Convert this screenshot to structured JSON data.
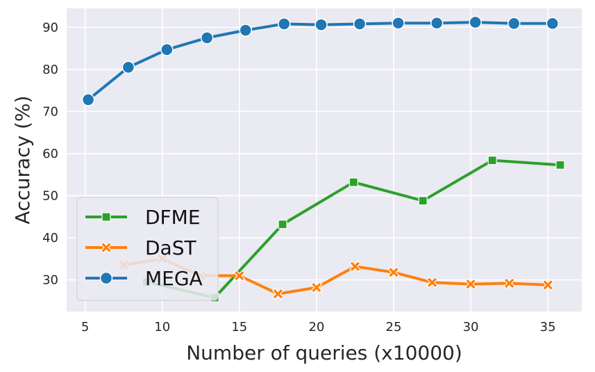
{
  "chart_data": {
    "type": "line",
    "title": "",
    "xlabel": "Number of queries (x10000)",
    "ylabel": "Accuracy (%)",
    "xlim": [
      3.8,
      37.2
    ],
    "ylim": [
      22.5,
      94.5
    ],
    "xticks": [
      5,
      10,
      15,
      20,
      25,
      30,
      35
    ],
    "yticks": [
      30,
      40,
      50,
      60,
      70,
      80,
      90
    ],
    "grid": true,
    "legend_position": "lower-left",
    "series": [
      {
        "name": "DFME",
        "color": "#2ca02c",
        "marker": "square",
        "x": [
          9,
          13.4,
          17.8,
          22.4,
          26.9,
          31.4,
          35.8
        ],
        "y": [
          29.5,
          25.8,
          43.2,
          53.2,
          48.8,
          58.4,
          57.3
        ]
      },
      {
        "name": "DaST",
        "color": "#ff7f0e",
        "marker": "x",
        "x": [
          7.5,
          10,
          12.5,
          15,
          17.5,
          20,
          22.5,
          25,
          27.5,
          30,
          32.5,
          35
        ],
        "y": [
          33.5,
          35.0,
          31.0,
          31.0,
          26.7,
          28.2,
          33.2,
          31.8,
          29.4,
          29.0,
          29.2,
          28.8
        ]
      },
      {
        "name": "MEGA",
        "color": "#1f77b4",
        "marker": "circle",
        "x": [
          5.2,
          7.8,
          10.3,
          12.9,
          15.4,
          17.9,
          20.3,
          22.8,
          25.3,
          27.8,
          30.3,
          32.8,
          35.3
        ],
        "y": [
          72.8,
          80.5,
          84.7,
          87.5,
          89.3,
          90.8,
          90.6,
          90.8,
          91.0,
          91.0,
          91.2,
          90.9,
          90.9
        ]
      }
    ]
  }
}
